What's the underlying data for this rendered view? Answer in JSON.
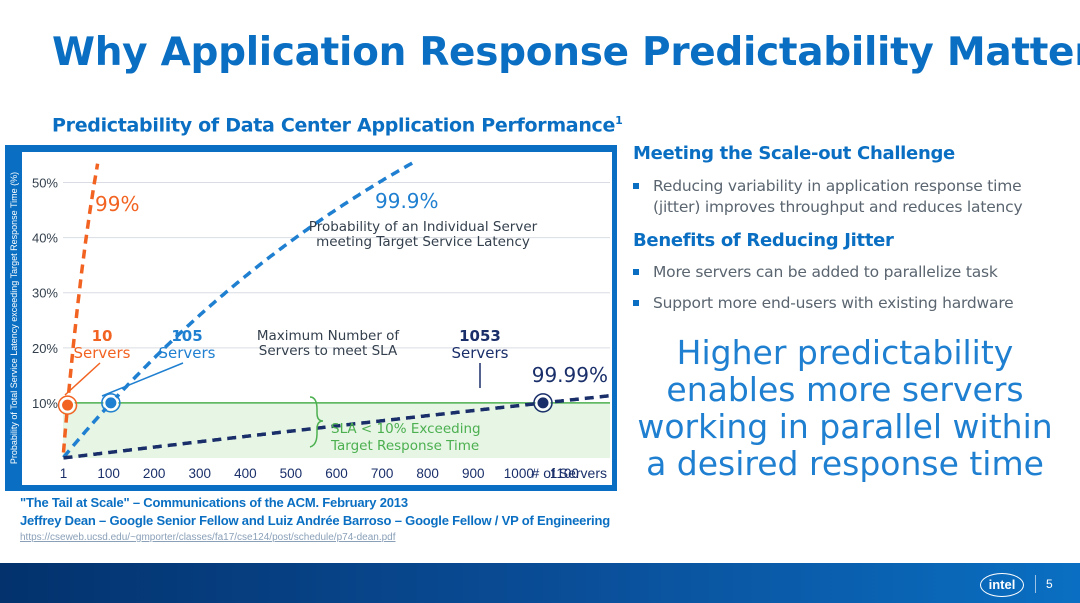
{
  "slide": {
    "title": "Why Application Response Predictability Matters",
    "subtitle": "Predictability of Data Center Application Performance",
    "subtitle_sup": "1",
    "page_number": "5",
    "logo_text": "intel"
  },
  "right": {
    "heading1": "Meeting the Scale-out Challenge",
    "bullet1": "Reducing variability in application response time (jitter) improves throughput and reduces latency",
    "heading2": "Benefits of Reducing Jitter",
    "bullet2": "More servers can be added to parallelize task",
    "bullet3": "Support more end-users with existing hardware",
    "callout": "Higher predictability enables more servers working in parallel within a desired response time"
  },
  "citation": {
    "line1": "\"The Tail at Scale\" – Communications of the ACM. February 2013",
    "line2": "Jeffrey Dean – Google Senior Fellow and Luiz Andrée Barroso – Google Fellow / VP of Engineering",
    "url": "https://cseweb.ucsd.edu/~gmporter/classes/fa17/cse124/post/schedule/p74-dean.pdf"
  },
  "colors": {
    "accent": "#0a6fc2",
    "orange": "#f26322",
    "blue_dash": "#1f7fd0",
    "navy_dash": "#1a2f6a",
    "sla_fill": "#e6f5e4",
    "sla_line": "#4cb050"
  },
  "chart_data": {
    "type": "line",
    "title": "Predictability of Data Center Application Performance",
    "xlabel": "# of Servers",
    "ylabel": "Probability of Total Service Latency exceeding Target Response Time (%)",
    "xlim": [
      0,
      1200
    ],
    "ylim": [
      0,
      55
    ],
    "x_ticks": [
      "1",
      "100",
      "200",
      "300",
      "400",
      "500",
      "600",
      "700",
      "800",
      "900",
      "1000",
      "1100"
    ],
    "x_tick_values": [
      1,
      100,
      200,
      300,
      400,
      500,
      600,
      700,
      800,
      900,
      1000,
      1100
    ],
    "y_ticks": [
      "10%",
      "20%",
      "30%",
      "40%",
      "50%"
    ],
    "y_tick_values": [
      10,
      20,
      30,
      40,
      50
    ],
    "grid": true,
    "sla_threshold": 10,
    "series": [
      {
        "name": "99%",
        "p": 0.01,
        "color": "#f26322"
      },
      {
        "name": "99.9%",
        "p": 0.001,
        "color": "#1f7fd0"
      },
      {
        "name": "99.99%",
        "p": 0.0001,
        "color": "#1a2f6a"
      }
    ],
    "markers": [
      {
        "x": 10,
        "y": 9.6,
        "value": "10",
        "label": "Servers",
        "color": "#f26322"
      },
      {
        "x": 105,
        "y": 10.0,
        "value": "105",
        "label": "Servers",
        "color": "#1f7fd0"
      },
      {
        "x": 1053,
        "y": 10.0,
        "value": "1053",
        "label": "Servers",
        "color": "#1a2f6a"
      }
    ],
    "annotations": {
      "s99_label": "99%",
      "s999_label": "99.9%",
      "s999_desc1": "Probability of an Individual Server",
      "s999_desc2": "meeting Target Service Latency",
      "s9999_label": "99.99%",
      "max_servers_1": "Maximum Number of",
      "max_servers_2": "Servers to meet SLA",
      "sla_1": "SLA < 10% Exceeding",
      "sla_2": "Target Response Time"
    }
  }
}
